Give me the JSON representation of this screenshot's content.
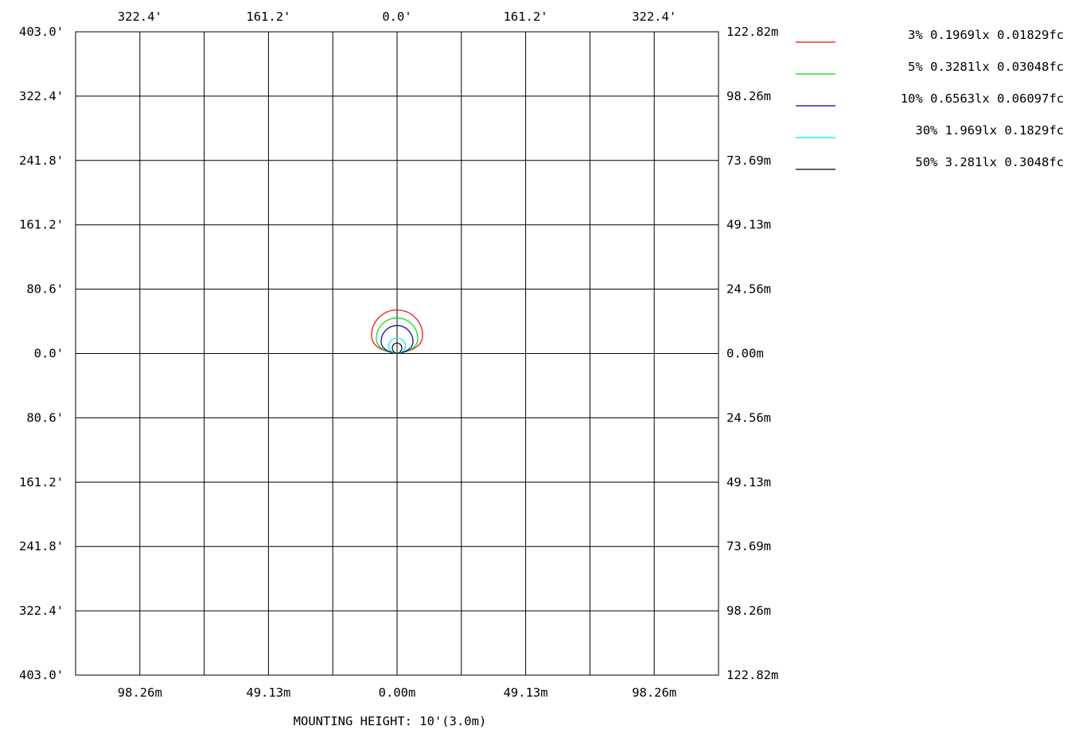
{
  "chart_data": {
    "type": "isofootcandle",
    "top_ticks": [
      "322.4'",
      "161.2'",
      "0.0'",
      "161.2'",
      "322.4'"
    ],
    "bottom_ticks": [
      "98.26m",
      "49.13m",
      "0.00m",
      "49.13m",
      "98.26m"
    ],
    "left_ticks": [
      "403.0'",
      "322.4'",
      "241.8'",
      "161.2'",
      "80.6'",
      "0.0'",
      "80.6'",
      "161.2'",
      "241.8'",
      "322.4'",
      "403.0'"
    ],
    "right_ticks": [
      "122.82m",
      "98.26m",
      "73.69m",
      "49.13m",
      "24.56m",
      "0.00m",
      "24.56m",
      "49.13m",
      "73.69m",
      "98.26m",
      "122.82m"
    ],
    "footer": "MOUNTING HEIGHT: 10'(3.0m)",
    "range_ft": {
      "x": [
        -403.0,
        403.0
      ],
      "y": [
        -403.0,
        403.0
      ]
    },
    "grid_step_ft": 80.6,
    "legend_position": "top-right",
    "series": [
      {
        "name": "3% 0.1969lx 0.01829fc",
        "color": "#ff0000",
        "radius_ft": 32.0,
        "center": [
          0,
          22.5
        ]
      },
      {
        "name": "5% 0.3281lx 0.03048fc",
        "color": "#00dd00",
        "radius_ft": 26.0,
        "center": [
          0,
          18.5
        ]
      },
      {
        "name": "10% 0.6563lx 0.06097fc",
        "color": "#0000aa",
        "radius_ft": 20.0,
        "center": [
          0,
          15.0
        ]
      },
      {
        "name": "30% 1.969lx 0.1829fc",
        "color": "#00e5ee",
        "radius_ft": 10.5,
        "center": [
          0,
          9.0
        ]
      },
      {
        "name": "50% 3.281lx 0.3048fc",
        "color": "#000000",
        "radius_ft": 6.0,
        "center": [
          0,
          7.0
        ]
      }
    ]
  }
}
